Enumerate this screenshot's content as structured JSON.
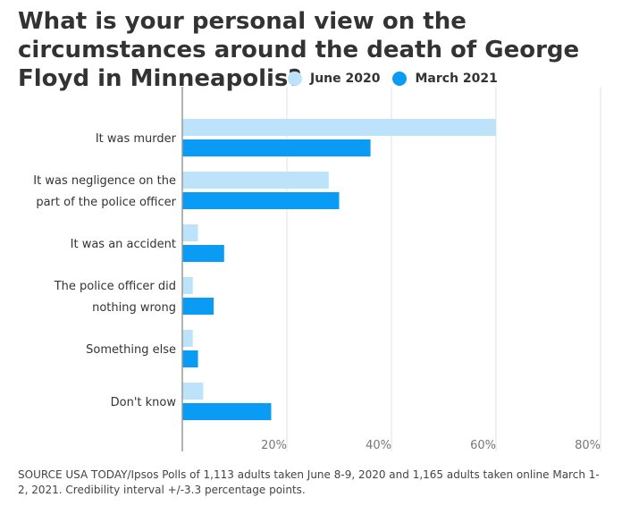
{
  "title": "What is your personal view on the circumstances around the death of George Floyd in Minneapolis?",
  "source": "SOURCE USA TODAY/Ipsos Polls of 1,113 adults taken June 8-9, 2020 and 1,165 adults taken online March 1-2, 2021. Credibility interval +/-3.3 percentage points.",
  "colors": {
    "june_2020": "#bde3fb",
    "march_2021": "#0a9cf5",
    "grid": "#e2e2e2",
    "axis": "#999999"
  },
  "chart_data": {
    "type": "bar",
    "orientation": "horizontal",
    "categories": [
      [
        "It was murder"
      ],
      [
        "It was negligence on the",
        "part of the police officer"
      ],
      [
        "It was an accident"
      ],
      [
        "The police officer did",
        "nothing wrong"
      ],
      [
        "Something else"
      ],
      [
        "Don't know"
      ]
    ],
    "series": [
      {
        "name": "June 2020",
        "values": [
          60,
          28,
          3,
          2,
          2,
          4
        ]
      },
      {
        "name": "March 2021",
        "values": [
          36,
          30,
          8,
          6,
          3,
          17
        ]
      }
    ],
    "xlim": [
      0,
      80
    ],
    "xticks": [
      "20%",
      "40%",
      "60%",
      "80%"
    ],
    "tick_values": [
      20,
      40,
      60,
      80
    ],
    "grid": true,
    "legend_position": "top-right"
  }
}
